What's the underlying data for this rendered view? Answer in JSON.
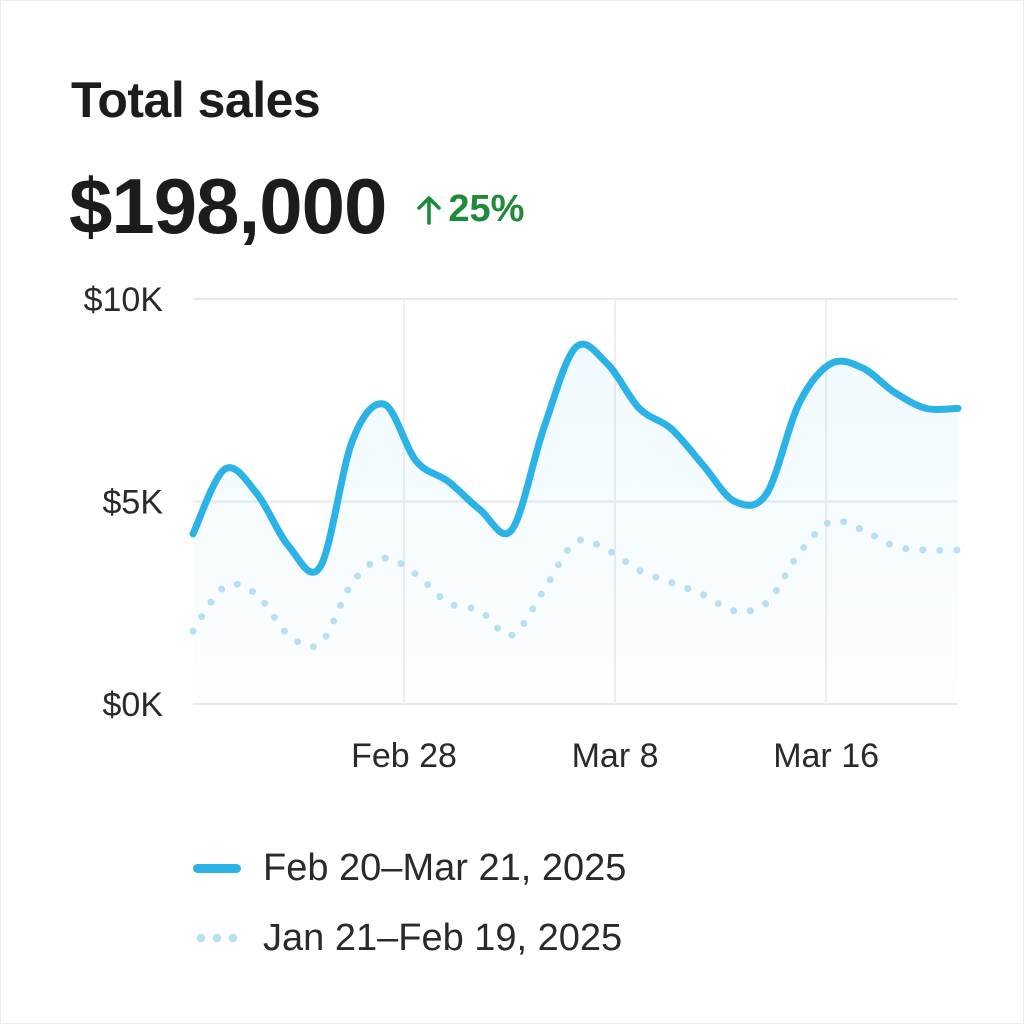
{
  "card": {
    "title": "Total sales",
    "amount": "$198,000",
    "delta": "25%",
    "delta_direction": "up",
    "delta_color": "#1e8a3a",
    "delta_icon": "arrow-up-icon"
  },
  "chart_data": {
    "type": "line",
    "title": "",
    "xlabel": "",
    "ylabel": "",
    "x_range": [
      0,
      29
    ],
    "ylim": [
      0,
      10000
    ],
    "y_ticks": [
      {
        "value": 10000,
        "label": "$10K"
      },
      {
        "value": 5000,
        "label": "$5K"
      },
      {
        "value": 0,
        "label": "$0K"
      }
    ],
    "x_ticks": [
      {
        "index": 8,
        "label": "Feb 28"
      },
      {
        "index": 16,
        "label": "Mar 8"
      },
      {
        "index": 24,
        "label": "Mar 16"
      }
    ],
    "grid": true,
    "legend_position": "bottom-left",
    "series": [
      {
        "name": "Feb 20–Mar 21, 2025",
        "style": "solid",
        "color": "#2bb3e8",
        "values": [
          4200,
          5800,
          5200,
          3900,
          3400,
          6500,
          7400,
          6000,
          5500,
          4800,
          4300,
          6800,
          8800,
          8400,
          7300,
          6800,
          5900,
          5000,
          5200,
          7400,
          8400,
          8300,
          7700,
          7300,
          7300
        ]
      },
      {
        "name": "Jan 21–Feb 19, 2025",
        "style": "dotted",
        "color": "#b9dff5",
        "values": [
          1800,
          2900,
          2700,
          1700,
          1500,
          3000,
          3600,
          3200,
          2500,
          2300,
          1700,
          2800,
          4000,
          3800,
          3300,
          3000,
          2700,
          2300,
          2500,
          3700,
          4500,
          4300,
          3900,
          3800,
          3800
        ]
      }
    ]
  }
}
